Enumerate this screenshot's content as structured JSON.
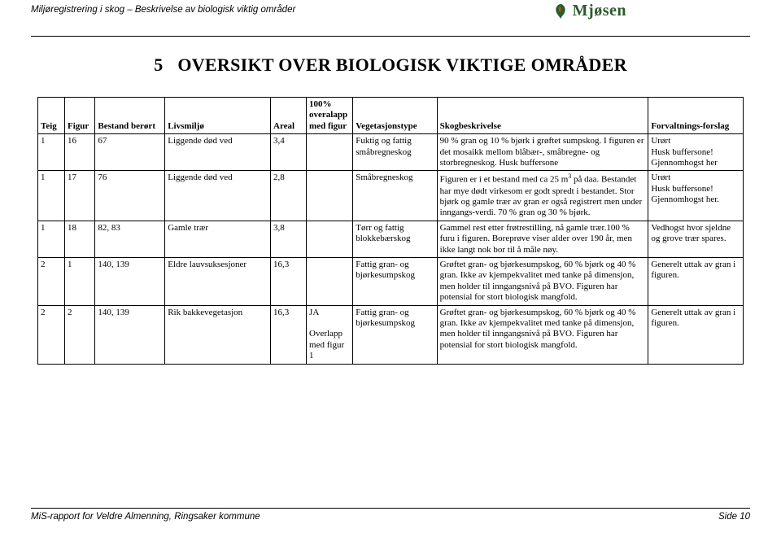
{
  "header": {
    "left": "Miljøregistrering i skog – Beskrivelse av biologisk viktig områder",
    "logo_text": "Mjøsen"
  },
  "title_number": "5",
  "title_text": "OVERSIKT OVER BIOLOGISK VIKTIGE OMRÅDER",
  "columns": [
    "Teig",
    "Figur",
    "Bestand berørt",
    "Livsmiljø",
    "Areal",
    "100% overalapp med figur",
    "Vegetasjonstype",
    "Skogbeskrivelse",
    "Forvaltnings-forslag"
  ],
  "rows": [
    {
      "teig": "1",
      "figur": "16",
      "bestand": "67",
      "livsmiljo": "Liggende død ved",
      "areal": "3,4",
      "overlapp": "",
      "veg": "Fuktig og fattig småbregneskog",
      "skog": "90 % gran og 10 % bjørk i grøftet sumpskog. I figuren er det mosaikk mellom blåbær-, småbregne- og storbregneskog. Husk buffersone",
      "forv": "Urørt\nHusk buffersone!\nGjennomhogst her"
    },
    {
      "teig": "1",
      "figur": "17",
      "bestand": "76",
      "livsmiljo": "Liggende død ved",
      "areal": "2,8",
      "overlapp": "",
      "veg": "Småbregneskog",
      "skog_html": "Figuren er i et bestand med ca 25 m<span class=\"sup\">3</span> på daa. Bestandet har mye dødt virkesom er godt spredt i bestandet. Stor bjørk og gamle trær av gran er også registrert men under inngangs-verdi. 70 % gran og 30 % bjørk.",
      "forv": "Urørt\nHusk buffersone!\nGjennomhogst her."
    },
    {
      "teig": "1",
      "figur": "18",
      "bestand": "82, 83",
      "livsmiljo": "Gamle trær",
      "areal": "3,8",
      "overlapp": "",
      "veg": "Tørr og fattig blokkebærskog",
      "skog": "Gammel rest etter frøtrestilling, nå gamle trær.100 % furu i figuren. Boreprøve viser alder over 190 år, men ikke langt nok bor til å måle nøy.",
      "forv": "Vedhogst hvor sjeldne og grove trær spares."
    },
    {
      "teig": "2",
      "figur": "1",
      "bestand": "140, 139",
      "livsmiljo": "Eldre lauvsuksesjoner",
      "areal": "16,3",
      "overlapp": "",
      "veg": "Fattig gran- og bjørkesumpskog",
      "skog": "Grøftet gran- og bjørkesumpskog, 60 % bjørk og 40 % gran. Ikke av kjempekvalitet med tanke på dimensjon, men holder til inngangsnivå på BVO. Figuren har potensial for stort biologisk mangfold.",
      "forv": "Generelt uttak av gran i figuren."
    },
    {
      "teig": "2",
      "figur": "2",
      "bestand": "140, 139",
      "livsmiljo": "Rik bakkevegetasjon",
      "areal": "16,3",
      "overlapp": "JA\n\nOverlapp med figur 1",
      "veg": "Fattig gran- og bjørkesumpskog",
      "skog": "Grøftet gran- og bjørkesumpskog, 60 % bjørk og 40 % gran. Ikke av kjempekvalitet med tanke på dimensjon, men holder til inngangsnivå på BVO. Figuren har potensial for stort biologisk mangfold.",
      "forv": "Generelt uttak av gran i figuren."
    }
  ],
  "footer": {
    "left": "MiS-rapport for Veldre Almenning, Ringsaker kommune",
    "right": "Side 10"
  },
  "colors": {
    "text": "#000000",
    "logo_green": "#2e5a2e",
    "background": "#ffffff"
  }
}
